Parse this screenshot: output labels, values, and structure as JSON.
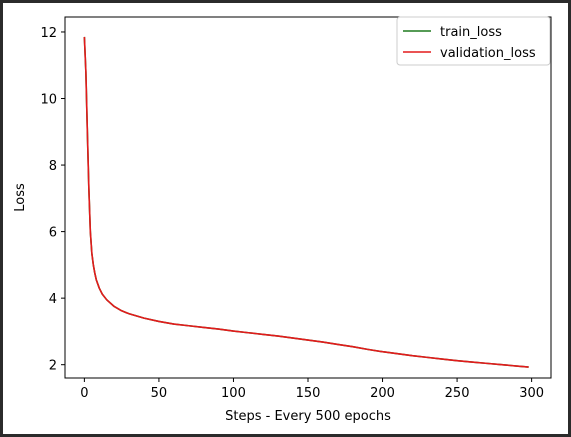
{
  "chart_data": {
    "type": "line",
    "title": "",
    "xlabel": "Steps - Every 500 epochs",
    "ylabel": "Loss",
    "xlim": [
      -13,
      313
    ],
    "ylim": [
      1.6,
      12.45
    ],
    "xticks": [
      0,
      50,
      100,
      150,
      200,
      250,
      300
    ],
    "yticks": [
      2,
      4,
      6,
      8,
      10,
      12
    ],
    "xtick_labels": [
      "0",
      "50",
      "100",
      "150",
      "200",
      "250",
      "300"
    ],
    "ytick_labels": [
      "2",
      "4",
      "6",
      "8",
      "10",
      "12"
    ],
    "grid": false,
    "legend_position": "top-right",
    "series": [
      {
        "name": "train_loss",
        "color": "#1f7a1f",
        "x": [
          0,
          1,
          2,
          3,
          4,
          5,
          6,
          7,
          8,
          10,
          12,
          15,
          20,
          25,
          30,
          40,
          50,
          60,
          70,
          80,
          90,
          100,
          110,
          120,
          130,
          140,
          150,
          160,
          170,
          180,
          190,
          200,
          210,
          220,
          230,
          240,
          250,
          260,
          270,
          280,
          290,
          298
        ],
        "y": [
          11.85,
          10.8,
          9.0,
          7.3,
          6.0,
          5.35,
          5.0,
          4.75,
          4.55,
          4.3,
          4.12,
          3.95,
          3.75,
          3.62,
          3.53,
          3.4,
          3.3,
          3.22,
          3.17,
          3.12,
          3.07,
          3.01,
          2.96,
          2.91,
          2.86,
          2.8,
          2.74,
          2.68,
          2.61,
          2.54,
          2.46,
          2.39,
          2.33,
          2.27,
          2.22,
          2.17,
          2.12,
          2.08,
          2.04,
          2.0,
          1.96,
          1.93
        ]
      },
      {
        "name": "validation_loss",
        "color": "#e31a1c",
        "x": [
          0,
          1,
          2,
          3,
          4,
          5,
          6,
          7,
          8,
          10,
          12,
          15,
          20,
          25,
          30,
          40,
          50,
          60,
          70,
          80,
          90,
          100,
          110,
          120,
          130,
          140,
          150,
          160,
          170,
          180,
          190,
          200,
          210,
          220,
          230,
          240,
          250,
          260,
          270,
          280,
          290,
          298
        ],
        "y": [
          11.85,
          10.8,
          9.0,
          7.3,
          6.0,
          5.35,
          5.0,
          4.75,
          4.55,
          4.3,
          4.12,
          3.95,
          3.75,
          3.62,
          3.53,
          3.4,
          3.3,
          3.22,
          3.17,
          3.12,
          3.07,
          3.01,
          2.96,
          2.91,
          2.86,
          2.8,
          2.74,
          2.68,
          2.61,
          2.54,
          2.46,
          2.39,
          2.33,
          2.27,
          2.22,
          2.17,
          2.12,
          2.08,
          2.04,
          2.0,
          1.96,
          1.93
        ]
      }
    ]
  }
}
